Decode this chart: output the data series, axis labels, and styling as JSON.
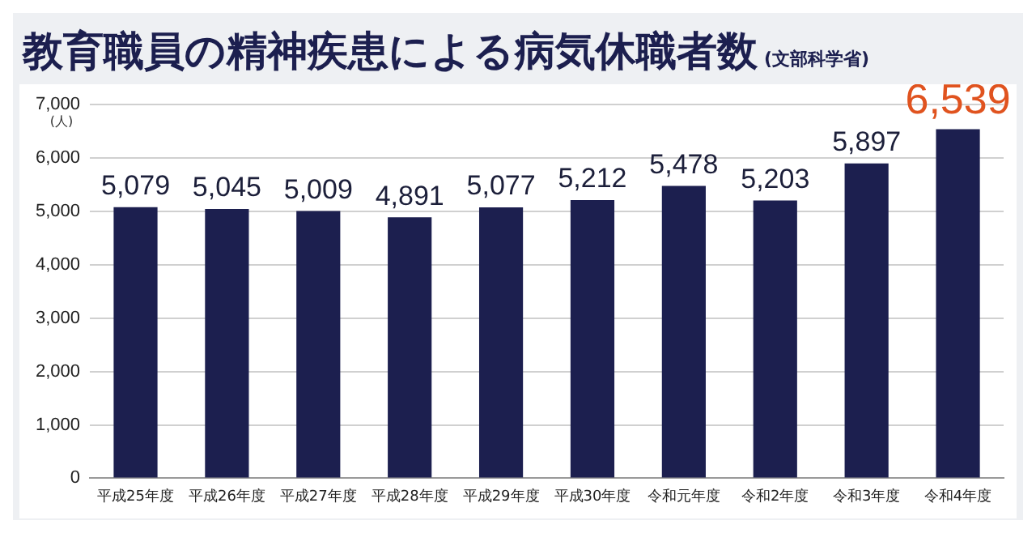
{
  "chart_data": {
    "type": "bar",
    "title": "教育職員の精神疾患による病気休職者数",
    "subtitle": "(文部科学省)",
    "ylabel": "(人)",
    "categories": [
      "平成25年度",
      "平成26年度",
      "平成27年度",
      "平成28年度",
      "平成29年度",
      "平成30年度",
      "令和元年度",
      "令和2年度",
      "令和3年度",
      "令和4年度"
    ],
    "values": [
      5079,
      5045,
      5009,
      4891,
      5077,
      5212,
      5478,
      5203,
      5897,
      6539
    ],
    "value_labels": [
      "5,079",
      "5,045",
      "5,009",
      "4,891",
      "5,077",
      "5,212",
      "5,478",
      "5,203",
      "5,897",
      "6,539"
    ],
    "color": "#1c1f4f",
    "ylim": [
      0,
      7000
    ],
    "yticks": [
      {
        "value": 0,
        "label": "0"
      },
      {
        "value": 1000,
        "label": "1,000"
      },
      {
        "value": 2000,
        "label": "2,000"
      },
      {
        "value": 3000,
        "label": "3,000"
      },
      {
        "value": 4000,
        "label": "4,000"
      },
      {
        "value": 5000,
        "label": "5,000"
      },
      {
        "value": 6000,
        "label": "6,000"
      },
      {
        "value": 7000,
        "label": "7,000"
      }
    ],
    "grid": "y",
    "legend": false
  }
}
